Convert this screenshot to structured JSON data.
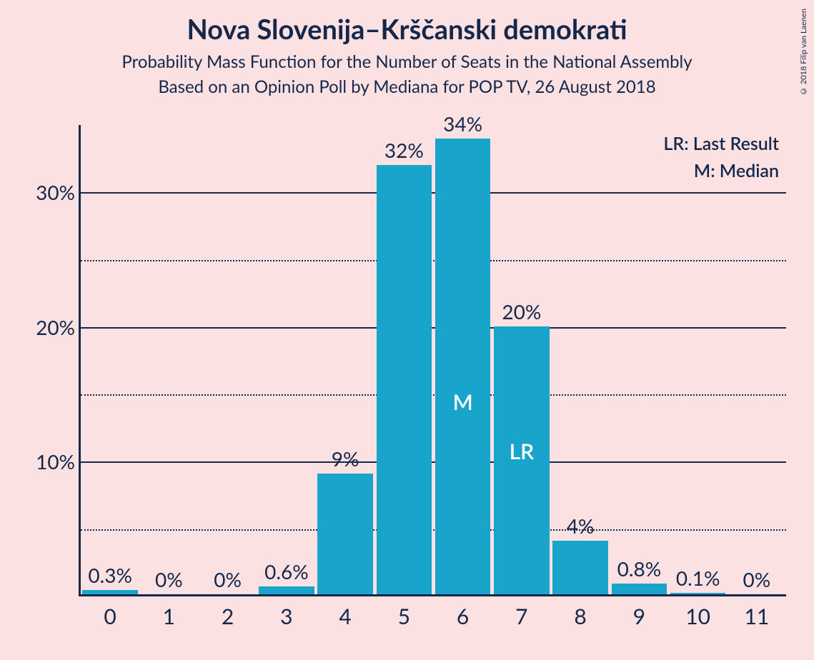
{
  "title": "Nova Slovenija–Krščanski demokrati",
  "subtitle": "Probability Mass Function for the Number of Seats in the National Assembly",
  "subtitle2": "Based on an Opinion Poll by Mediana for POP TV, 26 August 2018",
  "copyright": "© 2018 Filip van Laenen",
  "legend": {
    "lr": "LR: Last Result",
    "m": "M: Median"
  },
  "chart": {
    "type": "bar",
    "background_color": "#fbe1e2",
    "bar_color": "#19a4cb",
    "axis_color": "#15284b",
    "text_color": "#15284b",
    "inbar_text_color": "#ffffff",
    "title_fontsize": 38,
    "subtitle_fontsize": 24,
    "axis_label_fontsize": 28,
    "xlabel_fontsize": 30,
    "value_label_fontsize": 28,
    "legend_fontsize": 25,
    "ylim": [
      0,
      35
    ],
    "y_gridlines": [
      {
        "value": 5,
        "style": "dotted",
        "label": ""
      },
      {
        "value": 10,
        "style": "solid",
        "label": "10%"
      },
      {
        "value": 15,
        "style": "dotted",
        "label": ""
      },
      {
        "value": 20,
        "style": "solid",
        "label": "20%"
      },
      {
        "value": 25,
        "style": "dotted",
        "label": ""
      },
      {
        "value": 30,
        "style": "solid",
        "label": "30%"
      }
    ],
    "categories": [
      "0",
      "1",
      "2",
      "3",
      "4",
      "5",
      "6",
      "7",
      "8",
      "9",
      "10",
      "11"
    ],
    "values": [
      0.3,
      0,
      0,
      0.6,
      9,
      32,
      34,
      20,
      4,
      0.8,
      0.1,
      0
    ],
    "value_labels": [
      "0.3%",
      "0%",
      "0%",
      "0.6%",
      "9%",
      "32%",
      "34%",
      "20%",
      "4%",
      "0.8%",
      "0.1%",
      "0%"
    ],
    "median_index": 6,
    "median_label": "M",
    "last_result_index": 7,
    "last_result_label": "LR",
    "bar_width_ratio": 0.94
  }
}
